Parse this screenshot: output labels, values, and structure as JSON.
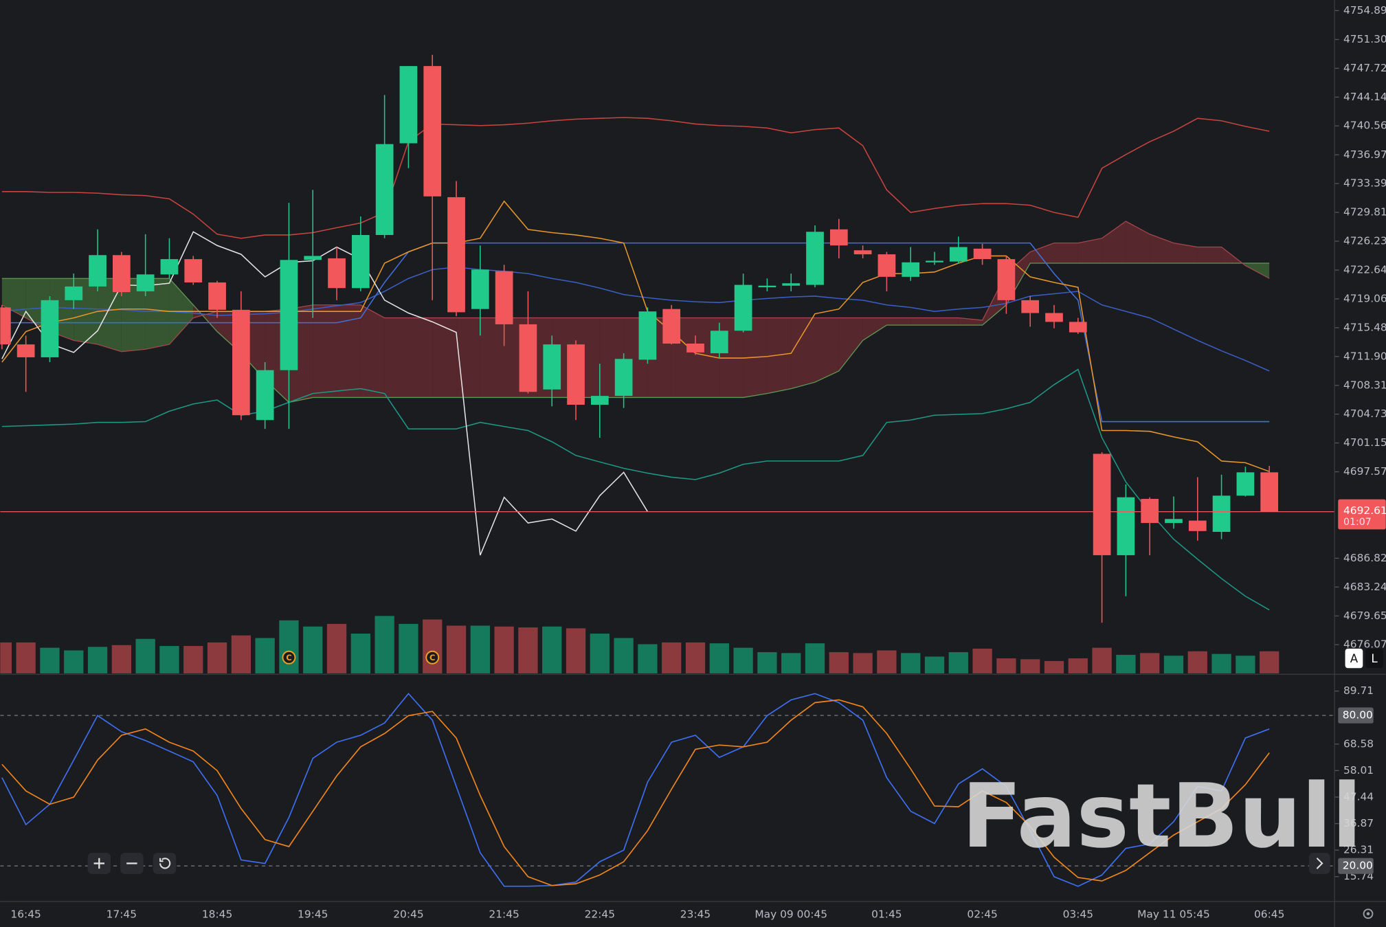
{
  "chart_data": [
    {
      "type": "candlestick",
      "categories": [
        null,
        "16:45",
        null,
        null,
        null,
        "17:45",
        null,
        null,
        null,
        "18:45",
        null,
        null,
        null,
        "19:45",
        null,
        null,
        null,
        "20:45",
        null,
        null,
        null,
        "21:45",
        null,
        null,
        null,
        "22:45",
        null,
        null,
        null,
        "23:45",
        null,
        null,
        null,
        "May 09 00:45",
        null,
        null,
        null,
        "01:45",
        null,
        null,
        null,
        "02:45",
        null,
        null,
        null,
        "03:45",
        null,
        null,
        null,
        "May 11 05:45",
        null,
        null,
        null,
        "06:45"
      ],
      "open": [
        4718.0,
        4713.4,
        4711.8,
        4718.9,
        4720.6,
        4724.5,
        4720.0,
        4722.1,
        4724.0,
        4721.1,
        4717.7,
        4704.0,
        4710.2,
        4723.9,
        4724.1,
        4720.4,
        4727.0,
        4738.4,
        4748.0,
        4731.7,
        4717.8,
        4722.5,
        4715.9,
        4707.8,
        4713.4,
        4705.9,
        4707.0,
        4711.5,
        4717.8,
        4713.5,
        4712.3,
        4715.1,
        4720.5,
        4720.7,
        4720.8,
        4727.7,
        4725.1,
        4724.6,
        4721.8,
        4723.6,
        4723.7,
        4725.3,
        4724.0,
        4718.9,
        4717.3,
        4716.2,
        4699.8,
        4687.2,
        4694.2,
        4691.2,
        4691.5,
        4690.1,
        4694.6,
        4697.5
      ],
      "high": [
        4718.3,
        4714.5,
        4719.4,
        4722.2,
        4727.7,
        4724.9,
        4727.1,
        4726.6,
        4724.4,
        4721.3,
        4720.0,
        4711.2,
        4731.0,
        4732.6,
        4725.5,
        4729.3,
        4744.4,
        4748.0,
        4749.4,
        4733.7,
        4725.7,
        4723.3,
        4720.0,
        4714.5,
        4713.9,
        4711.0,
        4712.3,
        4718.0,
        4718.3,
        4714.5,
        4716.1,
        4722.2,
        4721.6,
        4722.2,
        4728.2,
        4729.0,
        4725.7,
        4724.9,
        4725.5,
        4724.9,
        4726.8,
        4725.9,
        4724.4,
        4719.4,
        4718.3,
        4716.7,
        4700.0,
        4696.0,
        4694.4,
        4694.5,
        4696.9,
        4697.2,
        4698.2,
        4698.3
      ],
      "low": [
        4712.8,
        4707.5,
        4711.2,
        4717.8,
        4720.0,
        4719.4,
        4719.4,
        4721.6,
        4720.8,
        4716.7,
        4704.0,
        4702.9,
        4702.9,
        4716.7,
        4718.9,
        4720.0,
        4726.6,
        4735.3,
        4718.9,
        4716.9,
        4714.5,
        4713.2,
        4707.3,
        4705.7,
        4704.0,
        4701.8,
        4705.5,
        4711.0,
        4713.4,
        4712.1,
        4711.7,
        4714.9,
        4720.0,
        4720.0,
        4720.5,
        4724.1,
        4724.1,
        4720.0,
        4721.3,
        4723.3,
        4723.5,
        4723.3,
        4717.2,
        4715.6,
        4715.4,
        4714.7,
        4678.8,
        4682.1,
        4687.2,
        4690.5,
        4689.0,
        4689.2,
        4694.5,
        4692.7
      ],
      "close": [
        4713.4,
        4711.8,
        4718.9,
        4720.6,
        4724.5,
        4719.9,
        4722.1,
        4724.0,
        4721.1,
        4717.7,
        4704.6,
        4710.2,
        4723.9,
        4724.4,
        4720.4,
        4727.0,
        4738.3,
        4748.0,
        4731.8,
        4717.4,
        4722.7,
        4715.9,
        4707.5,
        4713.4,
        4705.9,
        4707.0,
        4711.6,
        4717.5,
        4713.5,
        4712.4,
        4715.1,
        4720.8,
        4720.7,
        4721.0,
        4727.4,
        4725.7,
        4724.6,
        4721.8,
        4723.6,
        4723.8,
        4725.5,
        4724.0,
        4718.9,
        4717.3,
        4716.2,
        4714.9,
        4687.2,
        4694.4,
        4691.2,
        4691.7,
        4690.2,
        4694.6,
        4697.5,
        4692.61
      ],
      "up_color": "#1fca8b",
      "down_color": "#f2575b",
      "ylim": [
        4672.51,
        4756.21
      ],
      "yticks": [
        4754.89,
        {
          "value": 4751.3,
          "label": "4751.30"
        },
        4747.72,
        4744.14,
        4740.56,
        4736.97,
        4733.39,
        4729.81,
        4726.23,
        4722.64,
        4719.06,
        4715.48,
        {
          "value": 4711.9,
          "label": "4711.90"
        },
        4708.31,
        4704.73,
        4701.15,
        4697.57,
        4686.82,
        4683.24,
        4679.65,
        4676.07
      ],
      "countdown": "01:07",
      "series": [
        {
          "color": "#c8443f",
          "values": [
            4732.4,
            4732.4,
            4732.3,
            4732.3,
            4732.2,
            4732.0,
            4731.9,
            4731.5,
            4729.6,
            4727.1,
            4726.6,
            4727.0,
            4727.0,
            4727.3,
            4727.9,
            4728.5,
            4729.8,
            4738.6,
            4740.8,
            4740.7,
            4740.6,
            4740.7,
            4740.9,
            4741.2,
            4741.4,
            4741.5,
            4741.6,
            4741.5,
            4741.2,
            4740.8,
            4740.6,
            4740.5,
            4740.3,
            4739.7,
            4740.1,
            4740.3,
            4738.1,
            4732.6,
            4729.8,
            4730.3,
            4730.7,
            4730.9,
            4730.9,
            4730.7,
            4729.8,
            4729.2,
            4735.3,
            4737.0,
            4738.6,
            4739.9,
            4741.5,
            4741.2,
            4740.5,
            4739.9
          ]
        },
        {
          "color": "#3a5fc4",
          "values": [
            4717.5,
            4717.8,
            4718.0,
            4717.9,
            4717.8,
            4717.7,
            4717.5,
            4717.5,
            4717.3,
            4717.0,
            4717.1,
            4717.2,
            4717.4,
            4717.8,
            4718.2,
            4718.6,
            4720.0,
            4721.6,
            4722.7,
            4723.0,
            4722.7,
            4722.5,
            4722.2,
            4721.6,
            4721.1,
            4720.4,
            4719.6,
            4719.2,
            4718.9,
            4718.7,
            4718.6,
            4718.9,
            4719.1,
            4719.3,
            4719.4,
            4719.1,
            4718.9,
            4718.3,
            4718.0,
            4717.5,
            4717.8,
            4718.0,
            4718.5,
            4719.4,
            4719.7,
            4720.0,
            4718.3,
            4717.5,
            4716.7,
            4715.3,
            4713.9,
            4712.6,
            4711.4,
            4710.1
          ]
        },
        {
          "color": "#1e9886",
          "values": [
            4703.2,
            4703.3,
            4703.4,
            4703.5,
            4703.7,
            4703.7,
            4703.8,
            4705.1,
            4706.0,
            4706.5,
            4704.6,
            4705.1,
            4706.2,
            4707.3,
            4707.6,
            4707.9,
            4707.3,
            4702.9,
            4702.9,
            4702.9,
            4703.7,
            4703.2,
            4702.7,
            4701.3,
            4699.6,
            4698.8,
            4698.0,
            4697.4,
            4696.9,
            4696.6,
            4697.4,
            4698.5,
            4698.9,
            4698.9,
            4698.9,
            4698.9,
            4699.6,
            4703.7,
            4704.0,
            4704.6,
            4704.7,
            4704.8,
            4705.4,
            4706.2,
            4708.4,
            4710.3,
            4701.8,
            4696.3,
            4692.5,
            4689.2,
            4686.7,
            4684.3,
            4682.1,
            4680.4
          ]
        },
        {
          "color": "#4070dc",
          "values": [
            4716.1,
            4716.1,
            4716.1,
            4716.1,
            4716.1,
            4716.1,
            4716.1,
            4716.1,
            4716.1,
            4716.1,
            4716.1,
            4716.1,
            4716.1,
            4716.1,
            4716.1,
            4716.7,
            4721.1,
            4724.9,
            4726.0,
            4726.0,
            4726.0,
            4726.0,
            4726.0,
            4726.0,
            4726.0,
            4726.0,
            4726.0,
            4726.0,
            4726.0,
            4726.0,
            4726.0,
            4726.0,
            4726.0,
            4726.0,
            4726.0,
            4726.0,
            4726.0,
            4726.0,
            4726.0,
            4726.0,
            4726.0,
            4726.0,
            4726.0,
            4726.0,
            4722.2,
            4718.9,
            4703.8,
            4703.8,
            4703.8,
            4703.8,
            4703.8,
            4703.8,
            4703.8,
            4703.8
          ]
        },
        {
          "color": "#e8962a",
          "values": [
            4711.2,
            4715.0,
            4716.1,
            4716.7,
            4717.5,
            4717.8,
            4717.8,
            4717.5,
            4717.5,
            4717.5,
            4717.5,
            4717.5,
            4717.5,
            4717.5,
            4717.5,
            4717.5,
            4723.5,
            4724.9,
            4726.0,
            4726.0,
            4726.6,
            4731.2,
            4727.7,
            4727.3,
            4727.0,
            4726.6,
            4726.0,
            4717.5,
            4715.0,
            4712.3,
            4711.7,
            4711.7,
            4711.9,
            4712.3,
            4717.2,
            4717.8,
            4721.1,
            4722.2,
            4722.2,
            4722.4,
            4723.5,
            4724.4,
            4724.4,
            4721.8,
            4721.1,
            4720.5,
            4702.7,
            4702.7,
            4702.6,
            4701.9,
            4701.3,
            4698.9,
            4698.7,
            4697.6
          ]
        },
        {
          "color": "#e4e4e4",
          "values": [
            4711.6,
            4717.5,
            4713.5,
            4712.4,
            4715.1,
            4720.8,
            4720.7,
            4721.0,
            4727.4,
            4725.7,
            4724.6,
            4721.8,
            4723.6,
            4723.8,
            4725.5,
            4724.0,
            4718.9,
            4717.3,
            4716.2,
            4714.9,
            4687.2,
            4694.4,
            4691.2,
            4691.7,
            4690.2,
            4694.6,
            4697.5,
            4692.61,
            null,
            null,
            null,
            null,
            null,
            null,
            null,
            null,
            null,
            null,
            null,
            null,
            null,
            null,
            null,
            null,
            null,
            null,
            null,
            null,
            null,
            null,
            null,
            null,
            null,
            null
          ]
        }
      ],
      "cloud": {
        "up_color": "#3f6a36",
        "down_color": "#6b2b30",
        "span_a": [
          4721.6,
          4721.6,
          4721.6,
          4721.6,
          4721.6,
          4721.6,
          4721.6,
          4721.6,
          4718.3,
          4715.0,
          4712.3,
          4709.0,
          4706.2,
          4706.8,
          4706.8,
          4706.8,
          4706.8,
          4706.8,
          4706.8,
          4706.8,
          4706.8,
          4706.8,
          4706.8,
          4706.8,
          4706.8,
          4706.8,
          4706.8,
          4706.8,
          4706.8,
          4706.8,
          4706.8,
          4706.8,
          4707.3,
          4707.9,
          4708.7,
          4710.1,
          4713.9,
          4715.8,
          4715.8,
          4715.8,
          4715.8,
          4715.8,
          4718.3,
          4723.5,
          4723.5,
          4723.5,
          4723.5,
          4723.5,
          4723.5,
          4723.5,
          4723.5,
          4723.5,
          4723.5,
          4723.5
        ],
        "span_b": [
          4718.3,
          4716.7,
          4715.0,
          4713.9,
          4713.4,
          4712.5,
          4712.8,
          4713.4,
          4716.7,
          4717.5,
          4717.5,
          4717.5,
          4717.8,
          4718.3,
          4718.3,
          4718.3,
          4716.7,
          4716.7,
          4716.7,
          4716.7,
          4716.7,
          4716.7,
          4716.7,
          4716.7,
          4716.7,
          4716.7,
          4716.7,
          4716.7,
          4716.7,
          4716.7,
          4716.7,
          4716.7,
          4716.7,
          4716.7,
          4716.7,
          4716.7,
          4716.7,
          4716.7,
          4716.7,
          4716.7,
          4716.7,
          4716.4,
          4722.2,
          4724.9,
          4726.0,
          4726.0,
          4726.6,
          4728.7,
          4727.1,
          4726.0,
          4725.5,
          4725.5,
          4723.2,
          4721.6
        ]
      },
      "volume": {
        "up_color": "#157a5b",
        "down_color": "#8c3a3e",
        "values": [
          35,
          35,
          29,
          26,
          30,
          32,
          39,
          31,
          31,
          35,
          43,
          40,
          60,
          53,
          56,
          45,
          65,
          56,
          61,
          54,
          54,
          53,
          52,
          53,
          51,
          45,
          40,
          33,
          35,
          35,
          34,
          29,
          24,
          23,
          34,
          24,
          23,
          26,
          23,
          19,
          24,
          28,
          17,
          16,
          14,
          17,
          29,
          21,
          23,
          20,
          25,
          22,
          20,
          25
        ]
      },
      "event_markers": [
        {
          "category_index": 12,
          "label": "C"
        },
        {
          "category_index": 18,
          "label": "C"
        }
      ]
    },
    {
      "type": "line",
      "ylim": [
        5.88,
        96.4
      ],
      "yticks": [
        89.71,
        68.58,
        58.01,
        47.44,
        36.87,
        26.31,
        15.74
      ],
      "levels": [
        {
          "value": 80,
          "label": "80.00"
        },
        {
          "value": 20,
          "label": "20.00"
        }
      ],
      "series": [
        {
          "color": "#3d6ff0",
          "values": [
            55.2,
            36.5,
            44.6,
            62.2,
            79.9,
            73.5,
            70.0,
            65.8,
            61.5,
            48.1,
            22.4,
            21.0,
            39.3,
            62.9,
            69.3,
            72.1,
            77.0,
            88.7,
            78.1,
            51.7,
            25.3,
            11.9,
            11.9,
            12.2,
            13.6,
            21.7,
            26.3,
            53.4,
            69.3,
            72.1,
            63.3,
            67.5,
            79.9,
            86.2,
            88.7,
            85.1,
            78.1,
            55.2,
            41.8,
            36.9,
            52.7,
            58.7,
            51.7,
            34.1,
            15.7,
            11.9,
            16.4,
            27.0,
            28.8,
            37.6,
            51.7,
            49.9,
            71.0,
            74.6
          ]
        },
        {
          "color": "#f0851d",
          "values": [
            60.5,
            49.9,
            44.6,
            47.4,
            62.2,
            72.1,
            74.6,
            69.3,
            65.8,
            58.0,
            42.9,
            30.5,
            27.7,
            41.8,
            55.9,
            67.5,
            72.8,
            79.9,
            81.6,
            71.0,
            48.1,
            27.7,
            15.7,
            12.2,
            12.9,
            16.4,
            21.7,
            34.1,
            50.6,
            66.5,
            68.2,
            67.5,
            69.3,
            78.1,
            85.1,
            86.2,
            83.4,
            72.8,
            58.7,
            43.9,
            43.6,
            49.9,
            45.3,
            35.8,
            23.5,
            15.4,
            14.0,
            18.2,
            25.3,
            32.3,
            37.6,
            42.9,
            52.4,
            65.1
          ]
        }
      ]
    }
  ],
  "watermark": "FastBull",
  "scale_buttons": [
    "A",
    "L"
  ]
}
